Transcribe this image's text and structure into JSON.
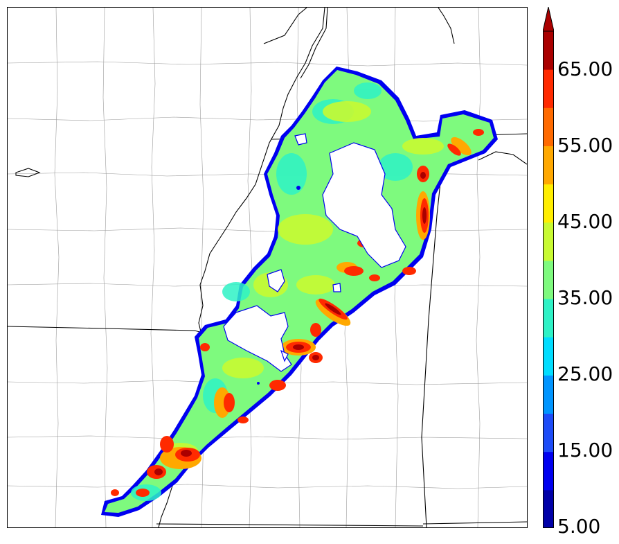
{
  "colorbar": {
    "labels": [
      "5.00",
      "15.00",
      "25.00",
      "35.00",
      "45.00",
      "55.00",
      "65.00"
    ],
    "bins": [
      5,
      10,
      15,
      20,
      25,
      30,
      35,
      40,
      45,
      50,
      55,
      60,
      65,
      70
    ],
    "colors": [
      "#0000a8",
      "#0000f0",
      "#1d4cf8",
      "#0095ff",
      "#00ddff",
      "#2ef2c6",
      "#7efa7e",
      "#c8fa32",
      "#ffee00",
      "#ffa800",
      "#ff6a00",
      "#ff2a00",
      "#aa0000"
    ],
    "extend": "max"
  },
  "legend": {
    "placement": "right",
    "orientation": "vertical"
  },
  "map": {
    "basemap": "county and state boundaries",
    "field_colors": {
      "low": "#2ef2c6",
      "mid": "#c8fa32",
      "high": "#ff2a00",
      "peak": "#aa0000",
      "edge": "#0000f0"
    }
  }
}
